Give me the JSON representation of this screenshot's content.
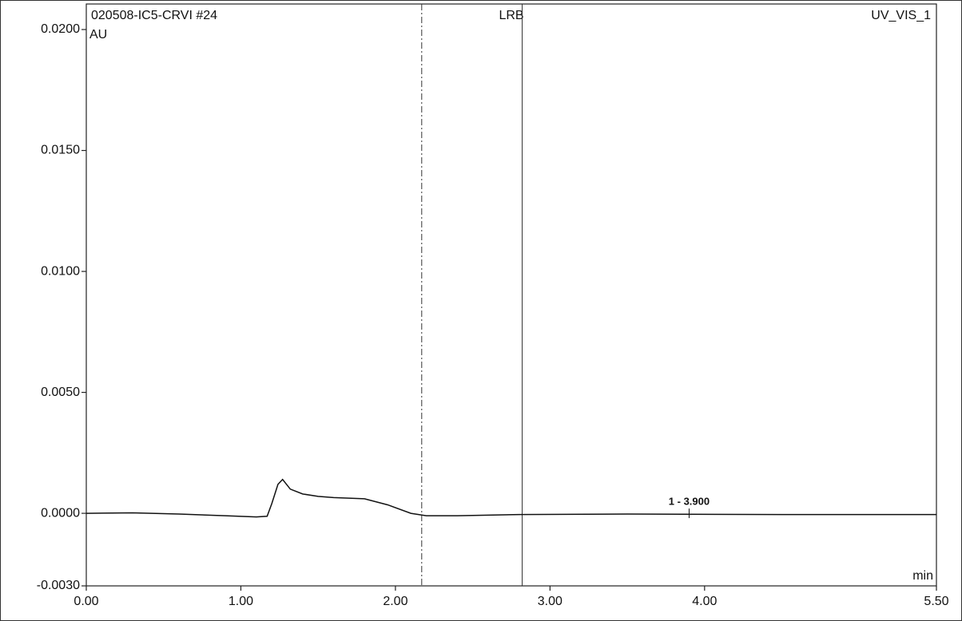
{
  "chart_data": {
    "type": "line",
    "title": "LRB",
    "subtitle_left": "020508-IC5-CRVI #24",
    "subtitle_right": "UV_VIS_1",
    "ylabel": "AU",
    "xlabel": "min",
    "xlim": [
      0,
      5.5
    ],
    "xticks": [
      {
        "value": 0,
        "label": "0.00"
      },
      {
        "value": 1,
        "label": "1.00"
      },
      {
        "value": 2,
        "label": "2.00"
      },
      {
        "value": 3,
        "label": "3.00"
      },
      {
        "value": 4,
        "label": "4.00"
      },
      {
        "value": 5.5,
        "label": "5.50"
      }
    ],
    "ylim": [
      -0.003,
      0.02
    ],
    "yticks": [
      {
        "value": -0.003,
        "label": "-0.0030"
      },
      {
        "value": 0,
        "label": "0.0000"
      },
      {
        "value": 0.005,
        "label": "0.0050"
      },
      {
        "value": 0.01,
        "label": "0.0100"
      },
      {
        "value": 0.015,
        "label": "0.0150"
      },
      {
        "value": 0.02,
        "label": "0.0200"
      }
    ],
    "series": [
      {
        "name": "UV_VIS_1",
        "color": "#111111",
        "x": [
          0,
          0.3,
          0.6,
          0.9,
          1.1,
          1.17,
          1.2,
          1.24,
          1.27,
          1.32,
          1.4,
          1.5,
          1.6,
          1.8,
          1.95,
          2.1,
          2.2,
          2.4,
          2.8,
          3.5,
          4.5,
          5.5
        ],
        "values": [
          0,
          2e-05,
          -3e-05,
          -0.0001,
          -0.00015,
          -0.00012,
          0.0004,
          0.0012,
          0.0014,
          0.001,
          0.0008,
          0.0007,
          0.00065,
          0.0006,
          0.00035,
          0.0,
          -0.0001,
          -0.0001,
          -5e-05,
          -3e-05,
          -5e-05,
          -5e-05
        ]
      }
    ],
    "vlines": [
      {
        "x": 2.17,
        "style": "dashdot"
      },
      {
        "x": 2.82,
        "style": "solid"
      }
    ],
    "annotations": [
      {
        "text": "1 - 3.900",
        "x": 3.9,
        "y": 0
      }
    ]
  }
}
